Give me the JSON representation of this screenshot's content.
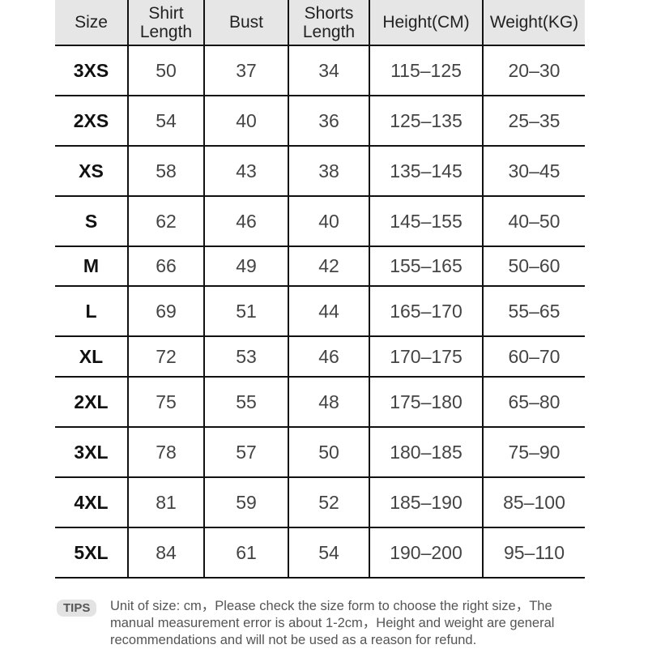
{
  "headers": [
    "Size",
    "Shirt Length",
    "Bust",
    "Shorts Length",
    "Height(CM)",
    "Weight(KG)"
  ],
  "rows": [
    [
      "3XS",
      "50",
      "37",
      "34",
      "115–125",
      "20–30"
    ],
    [
      "2XS",
      "54",
      "40",
      "36",
      "125–135",
      "25–35"
    ],
    [
      "XS",
      "58",
      "43",
      "38",
      "135–145",
      "30–45"
    ],
    [
      "S",
      "62",
      "46",
      "40",
      "145–155",
      "40–50"
    ],
    [
      "M",
      "66",
      "49",
      "42",
      "155–165",
      "50–60"
    ],
    [
      "L",
      "69",
      "51",
      "44",
      "165–170",
      "55–65"
    ],
    [
      "XL",
      "72",
      "53",
      "46",
      "170–175",
      "60–70"
    ],
    [
      "2XL",
      "75",
      "55",
      "48",
      "175–180",
      "65–80"
    ],
    [
      "3XL",
      "78",
      "57",
      "50",
      "180–185",
      "75–90"
    ],
    [
      "4XL",
      "81",
      "59",
      "52",
      "185–190",
      "85–100"
    ],
    [
      "5XL",
      "84",
      "61",
      "54",
      "190–200",
      "95–110"
    ]
  ],
  "tips": {
    "badge": "TIPS",
    "text": "Unit of size: cm，Please check the size form to choose the right size，The manual measurement error is about 1-2cm，Height and weight are general recommendations and will not be used as a reason for refund."
  }
}
